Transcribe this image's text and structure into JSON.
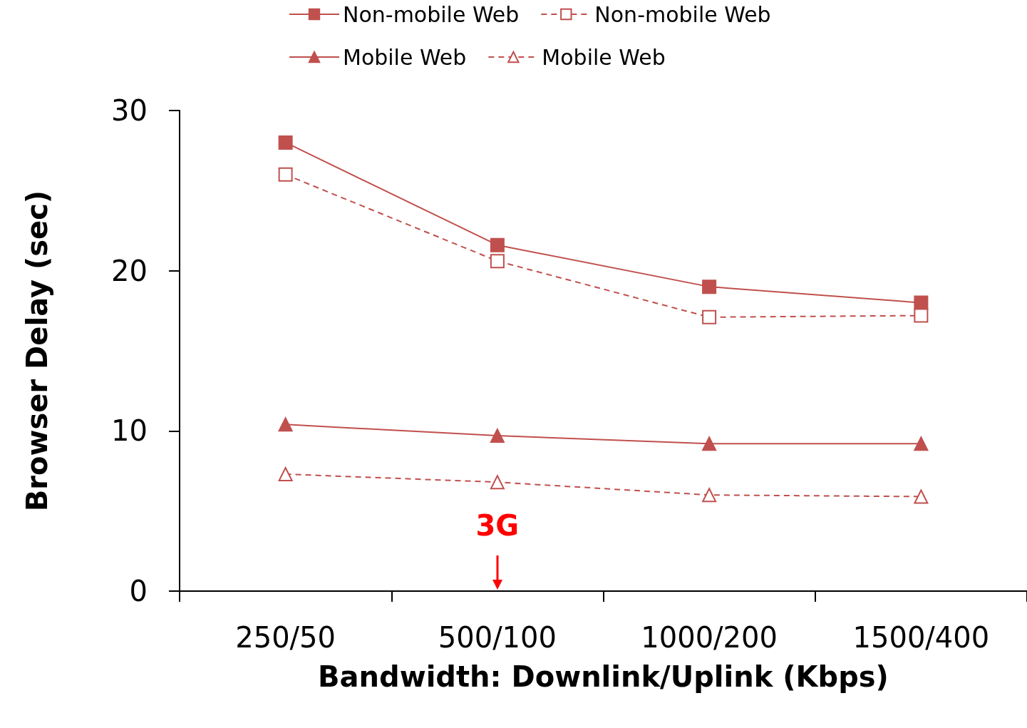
{
  "chart_data": {
    "type": "line",
    "xlabel": "Bandwidth: Downlink/Uplink (Kbps)",
    "ylabel": "Browser Delay (sec)",
    "categories": [
      "250/50",
      "500/100",
      "1000/200",
      "1500/400"
    ],
    "ylim": [
      0,
      30
    ],
    "yticks": [
      0,
      10,
      20,
      30
    ],
    "grid": false,
    "legend": "top",
    "series": [
      {
        "name": "Non-mobile Web",
        "color": "#c0504d",
        "marker": "square",
        "line_style": "solid",
        "values": [
          28.0,
          21.6,
          19.0,
          18.0
        ]
      },
      {
        "name": "Non-mobile Web",
        "color": "#c0504d",
        "marker": "square",
        "line_style": "dashed",
        "values": [
          26.0,
          20.6,
          17.1,
          17.2
        ]
      },
      {
        "name": "Mobile Web",
        "color": "#c0504d",
        "marker": "triangle",
        "line_style": "solid",
        "values": [
          10.4,
          9.7,
          9.2,
          9.2
        ]
      },
      {
        "name": "Mobile Web",
        "color": "#c0504d",
        "marker": "triangle",
        "line_style": "dashed",
        "values": [
          7.3,
          6.8,
          6.0,
          5.9
        ]
      }
    ],
    "annotations": [
      "3G"
    ]
  }
}
